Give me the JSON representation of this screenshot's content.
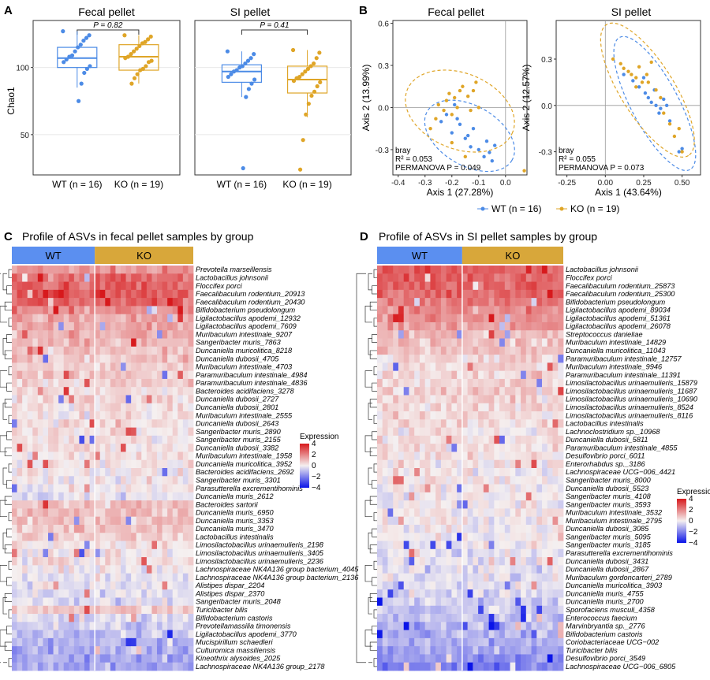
{
  "colors": {
    "wt": "#4c8be6",
    "ko": "#dfa527",
    "high": "#d7191c",
    "mid": "#f5f0f0",
    "low": "#0a14e8",
    "header_wt": "#5b8ff0",
    "header_ko": "#d8a73a"
  },
  "panelA": {
    "label": "A",
    "ylabel": "Chao1",
    "y_ticks": [
      "50",
      "100"
    ],
    "facets": [
      {
        "title": "Fecal pellet",
        "p_text": "P = 0.82",
        "groups": [
          {
            "label": "WT (n = 16)",
            "box": {
              "q1": 100,
              "median": 107,
              "q3": 115,
              "min": 85,
              "max": 127
            },
            "points": [
              127,
              124,
              122,
              120,
              117,
              115,
              112,
              109,
              108,
              106,
              104,
              101,
              99,
              96,
              88,
              75
            ]
          },
          {
            "label": "KO (n = 19)",
            "box": {
              "q1": 98,
              "median": 108,
              "q3": 117,
              "min": 88,
              "max": 124
            },
            "points": [
              124,
              123,
              121,
              119,
              118,
              116,
              114,
              112,
              110,
              108,
              107,
              105,
              104,
              101,
              99,
              98,
              95,
              92,
              88
            ]
          }
        ]
      },
      {
        "title": "SI pellet",
        "p_text": "P = 0.41",
        "groups": [
          {
            "label": "WT (n = 16)",
            "box": {
              "q1": 89,
              "median": 97,
              "q3": 102,
              "min": 78,
              "max": 112
            },
            "points": [
              112,
              110,
              107,
              105,
              103,
              101,
              100,
              98,
              97,
              95,
              93,
              91,
              88,
              84,
              78,
              25
            ]
          },
          {
            "label": "KO (n = 19)",
            "box": {
              "q1": 81,
              "median": 91,
              "q3": 101,
              "min": 63,
              "max": 113
            },
            "points": [
              113,
              111,
              107,
              103,
              101,
              99,
              97,
              95,
              93,
              92,
              90,
              89,
              86,
              82,
              79,
              73,
              65,
              46,
              24
            ]
          }
        ]
      }
    ]
  },
  "panelB": {
    "label": "B",
    "legend": [
      "WT (n = 16)",
      "KO (n = 19)"
    ],
    "facets": [
      {
        "title": "Fecal pellet",
        "xlabel": "Axis 1 (27.28%)",
        "ylabel": "Axis 2 (13.99%)",
        "stats": [
          "bray",
          "R² = 0.053",
          "PERMANOVA P = 0.049"
        ],
        "x_ticks": [
          "-0.4",
          "-0.3",
          "-0.2",
          "-0.1",
          "0.0"
        ],
        "y_ticks": [
          "-0.3",
          "0.0",
          "0.3",
          "0.6"
        ]
      },
      {
        "title": "SI pellet",
        "xlabel": "Axis 1 (43.64%)",
        "ylabel": "Axis 2 (12.57%)",
        "stats": [
          "bray",
          "R² = 0.055",
          "PERMANOVA P = 0.073"
        ],
        "x_ticks": [
          "-0.25",
          "0.00",
          "0.25",
          "0.50"
        ],
        "y_ticks": [
          "-0.3",
          "0.0",
          "0.3"
        ]
      }
    ]
  },
  "panelC": {
    "label": "C",
    "title": "Profile of ASVs in fecal pellet samples by group",
    "groups": [
      "WT",
      "KO"
    ],
    "legend_title": "Expression",
    "legend_ticks": [
      "4",
      "2",
      "0",
      "−2",
      "−4"
    ],
    "rows": [
      "Prevotella marseillensis",
      "Lactobacillus johnsonii",
      "Floccifex porci",
      "Faecalibaculum rodentium_20913",
      "Faecalibaculum rodentium_20430",
      "Bifidobacterium pseudolongum",
      "Ligilactobacillus apodemi_12932",
      "Ligilactobacillus apodemi_7609",
      "Muribaculum intestinale_9207",
      "Sangeribacter muris_7863",
      "Duncaniella muricolitica_8218",
      "Duncaniella dubosii_4705",
      "Muribaculum intestinale_4703",
      "Paramuribaculum intestinale_4984",
      "Paramuribaculum intestinale_4836",
      "Bacteroides acidifaciens_3278",
      "Duncaniella dubosii_2727",
      "Duncaniella dubosii_2801",
      "Muribaculum intestinale_2555",
      "Duncaniella dubosii_2643",
      "Sangeribacter muris_2890",
      "Sangeribacter muris_2155",
      "Duncaniella dubosii_3382",
      "Muribaculum intestinale_1958",
      "Duncaniella muricolitica_3952",
      "Bacteroides acidifaciens_2692",
      "Sangeribacter muris_3301",
      "Parasutterella excrementihominis",
      "Duncaniella muris_2612",
      "Bacteroides sartorii",
      "Duncaniella muris_6950",
      "Duncaniella muris_3353",
      "Duncaniella muris_3470",
      "Lactobacillus intestinalis",
      "Limosilactobacillus urinaemulieris_2198",
      "Limosilactobacillus urinaemulieris_3405",
      "Limosilactobacillus urinaemulieris_2236",
      "Lachnospiraceae NK4A136 group bacterium_4045",
      "Lachnospiraceae NK4A136 group bacterium_2136",
      "Alistipes dispar_2204",
      "Alistipes dispar_2370",
      "Sangeribacter muris_2048",
      "Turicibacter bilis",
      "Bifidobacterium castoris",
      "Prevotellamassilia timonensis",
      "Ligilactobacillus apodemi_3770",
      "Mucispirillum schaedleri",
      "Culturomica massiliensis",
      "Kineothrix alysoides_2025",
      "Lachnospiraceae NK4A136 group_2178"
    ],
    "base_levels": [
      1.6,
      2.4,
      2.6,
      2.8,
      2.7,
      1.8,
      1.3,
      1.2,
      1.2,
      0.9,
      0.8,
      0.8,
      0.7,
      0.6,
      0.6,
      0.4,
      0.4,
      0.4,
      0.3,
      0.3,
      0.3,
      0.3,
      0.3,
      0.2,
      0.2,
      0.1,
      0.1,
      0,
      -0.2,
      0.8,
      0.9,
      0.9,
      0.8,
      0.6,
      0.3,
      0.2,
      0.2,
      0,
      -0.1,
      -0.2,
      -0.3,
      -0.3,
      0.6,
      -0.4,
      -0.6,
      -0.8,
      -1.0,
      -1.2,
      -1.3,
      -1.4
    ]
  },
  "panelD": {
    "label": "D",
    "title": "Profile of ASVs in SI pellet samples by group",
    "groups": [
      "WT",
      "KO"
    ],
    "legend_title": "Expression",
    "legend_ticks": [
      "4",
      "2",
      "0",
      "−2",
      "−4"
    ],
    "rows": [
      "Lactobacillus johnsonii",
      "Floccifex porci",
      "Faecalibaculum rodentium_25873",
      "Faecalibaculum rodentium_25300",
      "Bifidobacterium pseudolongum",
      "Ligilactobacillus apodemi_89034",
      "Ligilactobacillus apodemi_51361",
      "Ligilactobacillus apodemi_26078",
      "Streptococcus danieliae",
      "Muribaculum intestinale_14829",
      "Duncaniella muricolitica_11043",
      "Paramuribaculum intestinale_12757",
      "Muribaculum intestinale_9946",
      "Paramuribaculum intestinale_11391",
      "Limosilactobacillus urinaemulieris_15879",
      "Limosilactobacillus urinaemulieris_11687",
      "Limosilactobacillus urinaemulieris_10690",
      "Limosilactobacillus urinaemulieris_8524",
      "Limosilactobacillus urinaemulieris_8116",
      "Lactobacillus intestinalis",
      "Lachnoclostridium sp._10968",
      "Duncaniella dubosii_5811",
      "Paramuribaculum intestinale_4855",
      "Desulfovibrio porci_6011",
      "Enterorhabdus sp._3186",
      "Lachnospiraceae UCG−006_4421",
      "Sangeribacter muris_8000",
      "Duncaniella dubosii_5523",
      "Sangeribacter muris_4108",
      "Sangeribacter muris_3593",
      "Muribaculum intestinale_3532",
      "Muribaculum intestinale_2795",
      "Duncaniella dubosii_3085",
      "Sangeribacter muris_5095",
      "Sangeribacter muris_3185",
      "Parasutterella excrementihominis",
      "Duncaniella dubosii_3431",
      "Duncaniella dubosii_2867",
      "Muribaculum gordoncarteri_2789",
      "Duncaniella muricolitica_3903",
      "Duncaniella muris_4755",
      "Duncaniella muris_2700",
      "Sporofaciens musculi_4358",
      "Enterococcus faecium",
      "Marvinbryantia sp._2776",
      "Bifidobacterium castoris",
      "Coriobacteriaceae UCG−002",
      "Turicibacter bilis",
      "Desulfovibrio porci_3549",
      "Lachnospiraceae UCG−006_6805"
    ],
    "base_levels": [
      2.8,
      2.6,
      2.6,
      2.5,
      2.2,
      1.8,
      1.8,
      1.6,
      1.0,
      0.9,
      0.8,
      0.6,
      0.5,
      0.5,
      0.6,
      0.5,
      0.5,
      0.4,
      0.4,
      0.5,
      0.3,
      0.3,
      0.3,
      0.2,
      0.2,
      0.1,
      0.1,
      0.1,
      0,
      0,
      0,
      0,
      -0.1,
      -0.1,
      -0.1,
      -0.2,
      -0.2,
      -0.3,
      -0.3,
      -0.4,
      -0.5,
      -0.6,
      -0.8,
      -0.8,
      -1.0,
      -1.1,
      -1.2,
      -1.4,
      -1.6,
      -2.0
    ]
  },
  "chart_data": [
    {
      "type": "box",
      "title": "Fecal pellet",
      "ylabel": "Chao1",
      "ylim": [
        20,
        135
      ],
      "categories": [
        "WT (n = 16)",
        "KO (n = 19)"
      ],
      "annotation": "P = 0.82"
    },
    {
      "type": "box",
      "title": "SI pellet",
      "ylabel": "Chao1",
      "ylim": [
        20,
        135
      ],
      "categories": [
        "WT (n = 16)",
        "KO (n = 19)"
      ],
      "annotation": "P = 0.41"
    },
    {
      "type": "scatter",
      "title": "Fecal pellet",
      "xlabel": "Axis 1 (27.28%)",
      "ylabel": "Axis 2 (13.99%)",
      "xlim": [
        -0.42,
        0.08
      ],
      "ylim": [
        -0.48,
        0.62
      ],
      "series": [
        {
          "name": "WT (n = 16)",
          "x": [
            -0.24,
            -0.22,
            -0.2,
            -0.19,
            -0.17,
            -0.15,
            -0.13,
            -0.12,
            -0.1,
            -0.08,
            -0.07,
            -0.05,
            -0.04,
            -0.18,
            -0.14,
            -0.06
          ],
          "y": [
            -0.1,
            -0.05,
            -0.18,
            0.02,
            -0.12,
            -0.22,
            -0.28,
            -0.15,
            -0.3,
            -0.35,
            -0.24,
            -0.38,
            -0.27,
            -0.08,
            -0.2,
            -0.32
          ]
        },
        {
          "name": "KO (n = 19)",
          "x": [
            -0.28,
            -0.26,
            -0.25,
            -0.23,
            -0.22,
            -0.21,
            -0.2,
            -0.19,
            -0.18,
            -0.17,
            -0.16,
            -0.14,
            -0.13,
            -0.12,
            -0.11,
            -0.1,
            -0.15,
            -0.2,
            0.07
          ],
          "y": [
            -0.15,
            -0.08,
            0.02,
            -0.02,
            0.05,
            0.1,
            -0.05,
            0.07,
            0.0,
            0.12,
            0.15,
            0.08,
            -0.02,
            0.12,
            0.18,
            0.0,
            -0.35,
            -0.25,
            -0.45
          ]
        }
      ]
    },
    {
      "type": "scatter",
      "title": "SI pellet",
      "xlabel": "Axis 1 (43.64%)",
      "ylabel": "Axis 2 (12.57%)",
      "xlim": [
        -0.32,
        0.62
      ],
      "ylim": [
        -0.45,
        0.55
      ],
      "series": [
        {
          "name": "WT (n = 16)",
          "x": [
            0.12,
            0.18,
            0.22,
            0.26,
            0.28,
            0.3,
            0.33,
            0.36,
            0.38,
            0.4,
            0.32,
            0.25,
            0.35,
            0.42,
            0.5,
            0.48
          ],
          "y": [
            0.2,
            0.16,
            0.12,
            0.08,
            0.05,
            0.02,
            0.0,
            -0.02,
            0.04,
            0.0,
            0.1,
            0.18,
            -0.05,
            -0.1,
            -0.28,
            -0.3
          ]
        },
        {
          "name": "KO (n = 19)",
          "x": [
            0.05,
            0.1,
            0.12,
            0.15,
            0.17,
            0.2,
            0.22,
            0.24,
            0.27,
            0.3,
            0.33,
            0.36,
            0.38,
            0.42,
            0.45,
            0.48,
            0.5,
            0.28,
            0.2
          ],
          "y": [
            0.3,
            0.27,
            0.24,
            0.22,
            0.2,
            0.18,
            0.25,
            0.15,
            0.2,
            0.28,
            0.1,
            0.05,
            -0.05,
            -0.12,
            -0.2,
            -0.15,
            -0.3,
            0.15,
            0.12
          ]
        }
      ]
    },
    {
      "type": "heatmap",
      "title": "Profile of ASVs in fecal pellet samples by group",
      "columns": {
        "WT": 16,
        "KO": 19
      },
      "scale": [
        -4,
        4
      ]
    },
    {
      "type": "heatmap",
      "title": "Profile of ASVs in SI pellet samples by group",
      "columns": {
        "WT": 16,
        "KO": 19
      },
      "scale": [
        -4,
        4
      ]
    }
  ]
}
